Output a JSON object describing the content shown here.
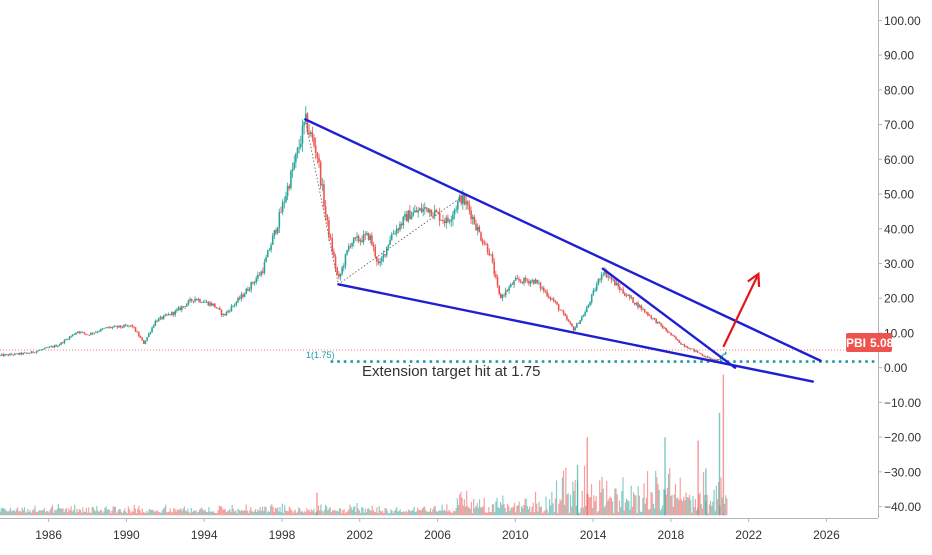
{
  "chart_data": {
    "type": "candlestick",
    "symbol": "PBI",
    "last_price": "5.08",
    "annotation_text": "Extension target hit at 1.75",
    "fib_label": "1(1.75)",
    "x_ticks": [
      "1986",
      "1990",
      "1994",
      "1998",
      "2002",
      "2006",
      "2010",
      "2014",
      "2018",
      "2022",
      "2026"
    ],
    "y_ticks": [
      "100.00",
      "90.00",
      "80.00",
      "70.00",
      "60.00",
      "50.00",
      "40.00",
      "30.00",
      "20.00",
      "10.00",
      "0.00",
      "−10.00",
      "−20.00",
      "−30.00",
      "−40.00"
    ],
    "y_range": [
      -43,
      103
    ],
    "x_range": [
      1983.5,
      2028.6
    ],
    "colors": {
      "up": "#26a69a",
      "down": "#ef5350",
      "trendline": "#1e1ed2",
      "arrow": "#e31515",
      "fib": "#1c9ca6",
      "price_line": "#ef5350",
      "price_badge": "#ef5350"
    },
    "price_anchors": [
      {
        "x": 1983.5,
        "y": 3.5
      },
      {
        "x": 1985,
        "y": 4.2
      },
      {
        "x": 1986.5,
        "y": 6.5
      },
      {
        "x": 1987.5,
        "y": 10.5
      },
      {
        "x": 1988,
        "y": 9.5
      },
      {
        "x": 1989,
        "y": 11.5
      },
      {
        "x": 1990.3,
        "y": 12
      },
      {
        "x": 1990.9,
        "y": 7
      },
      {
        "x": 1991.5,
        "y": 13.5
      },
      {
        "x": 1992.5,
        "y": 16
      },
      {
        "x": 1993.5,
        "y": 20
      },
      {
        "x": 1994.5,
        "y": 18
      },
      {
        "x": 1995,
        "y": 15
      },
      {
        "x": 1996,
        "y": 21
      },
      {
        "x": 1997,
        "y": 28
      },
      {
        "x": 1997.8,
        "y": 42
      },
      {
        "x": 1998.3,
        "y": 52
      },
      {
        "x": 1998.8,
        "y": 62
      },
      {
        "x": 1999.2,
        "y": 71
      },
      {
        "x": 1999.8,
        "y": 62
      },
      {
        "x": 2000.3,
        "y": 42
      },
      {
        "x": 2000.9,
        "y": 25
      },
      {
        "x": 2001.5,
        "y": 36
      },
      {
        "x": 2002.5,
        "y": 38
      },
      {
        "x": 2003,
        "y": 29
      },
      {
        "x": 2003.6,
        "y": 38
      },
      {
        "x": 2004.5,
        "y": 44
      },
      {
        "x": 2005.5,
        "y": 46
      },
      {
        "x": 2006.5,
        "y": 42
      },
      {
        "x": 2007.2,
        "y": 49
      },
      {
        "x": 2007.6,
        "y": 46
      },
      {
        "x": 2008.2,
        "y": 38
      },
      {
        "x": 2008.7,
        "y": 33
      },
      {
        "x": 2009.2,
        "y": 20
      },
      {
        "x": 2010,
        "y": 25
      },
      {
        "x": 2011,
        "y": 25
      },
      {
        "x": 2012,
        "y": 19
      },
      {
        "x": 2013,
        "y": 11
      },
      {
        "x": 2013.6,
        "y": 16
      },
      {
        "x": 2014.5,
        "y": 28
      },
      {
        "x": 2015.5,
        "y": 22
      },
      {
        "x": 2016.5,
        "y": 17
      },
      {
        "x": 2017.5,
        "y": 12
      },
      {
        "x": 2018.5,
        "y": 7
      },
      {
        "x": 2019.5,
        "y": 4
      },
      {
        "x": 2020.2,
        "y": 2
      },
      {
        "x": 2020.5,
        "y": 2.5
      },
      {
        "x": 2020.9,
        "y": 5.08
      }
    ],
    "lines": [
      {
        "name": "upper-trendline",
        "x1": 1999.2,
        "y1": 71.5,
        "x2": 2025.7,
        "y2": 2.0
      },
      {
        "name": "lower-trendline",
        "x1": 2000.9,
        "y1": 24.0,
        "x2": 2025.3,
        "y2": -4.0
      },
      {
        "name": "inner-trendline",
        "x1": 2014.5,
        "y1": 28.5,
        "x2": 2021.3,
        "y2": 0.0
      }
    ],
    "dotted_line": {
      "x1": 1999.2,
      "y1": 71.5,
      "x2": 2000.9,
      "y2": 24.0,
      "x3": 2007.2,
      "y3": 49.0
    },
    "arrow": {
      "x1": 2020.7,
      "y1": 6.0,
      "x2": 2022.5,
      "y2": 27.0
    },
    "fib_level": 1.75,
    "price_line_level": 5.08,
    "volume_baseline": -42.5,
    "volume_regimes": [
      {
        "from": 1983.5,
        "to": 2007,
        "max": 3
      },
      {
        "from": 2007,
        "to": 2012,
        "max": 8
      },
      {
        "from": 2012,
        "to": 2021,
        "max": 15
      }
    ],
    "volume_spikes": [
      {
        "x": 1999.8,
        "y": -36
      },
      {
        "x": 2013.2,
        "y": -28
      },
      {
        "x": 2013.7,
        "y": -20
      },
      {
        "x": 2017.7,
        "y": -20
      },
      {
        "x": 2019.4,
        "y": -21
      },
      {
        "x": 2020.5,
        "y": -13
      },
      {
        "x": 2020.7,
        "y": -2
      },
      {
        "x": 2019.8,
        "y": -29
      }
    ]
  }
}
